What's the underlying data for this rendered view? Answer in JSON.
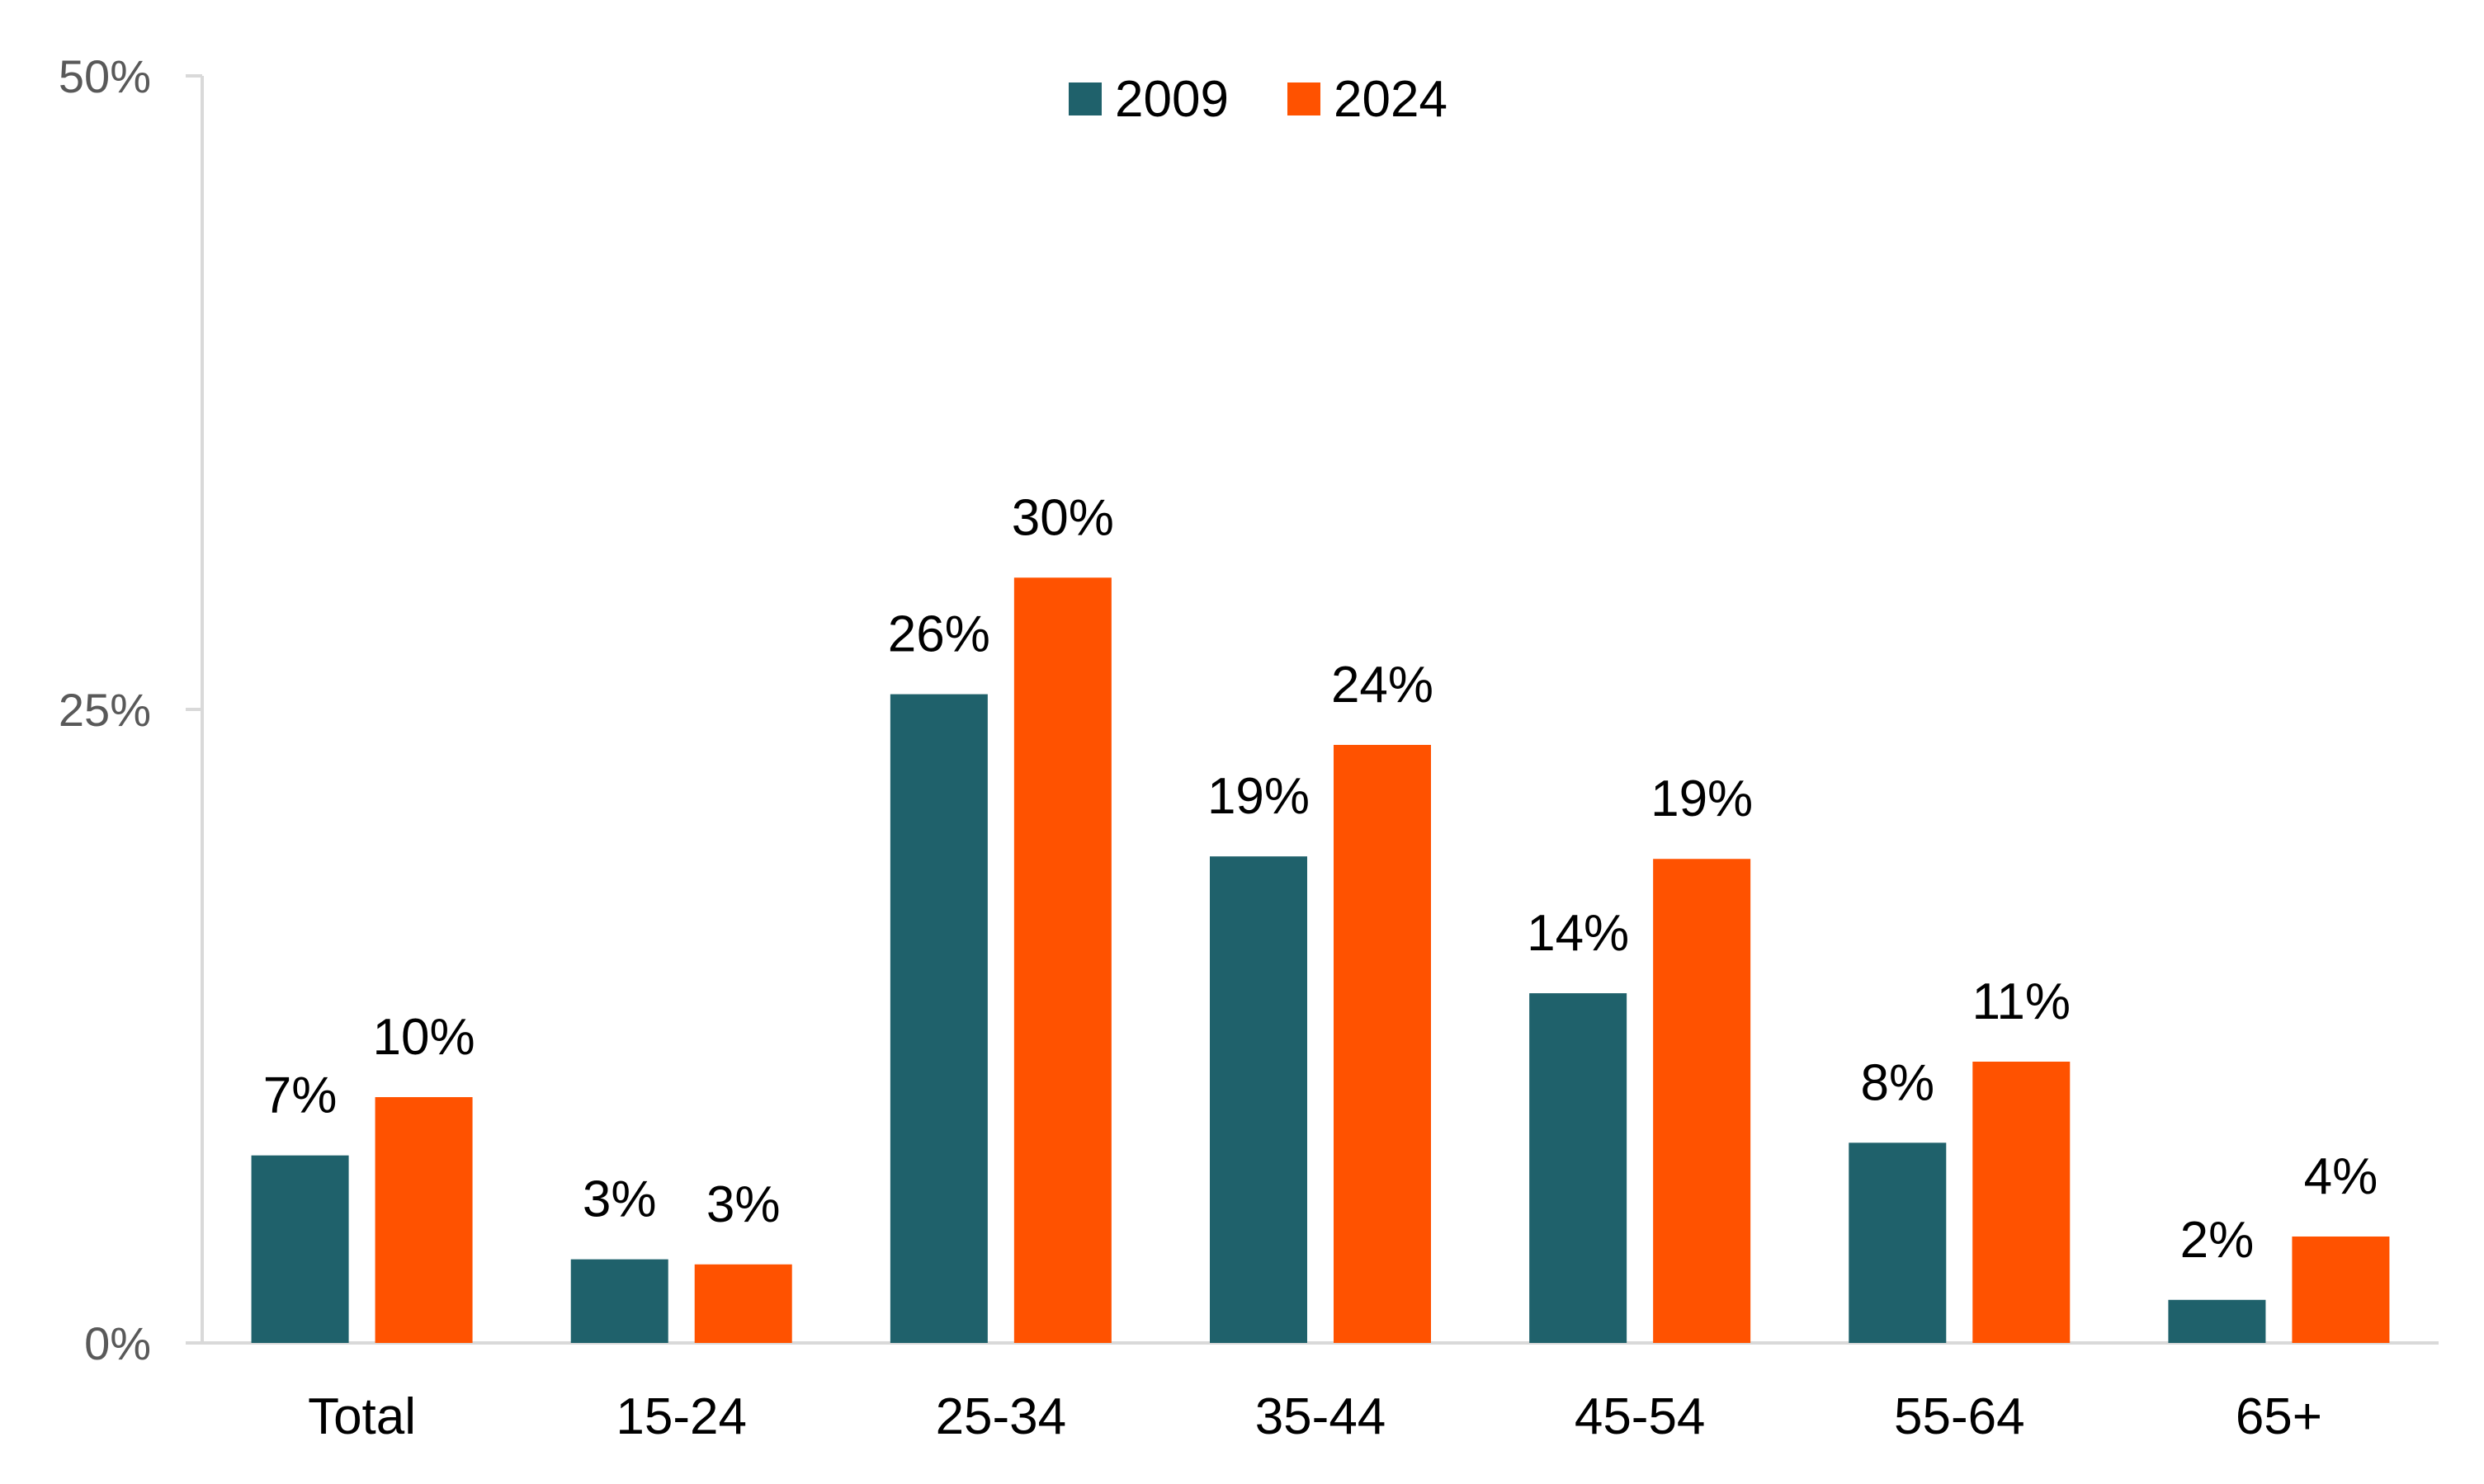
{
  "chart_data": {
    "type": "bar",
    "categories": [
      "Total",
      "15-24",
      "25-34",
      "35-44",
      "45-54",
      "55-64",
      "65+"
    ],
    "series": [
      {
        "name": "2009",
        "color": "#1f616b",
        "values": [
          7.4,
          3.3,
          25.6,
          19.2,
          13.8,
          7.9,
          1.7
        ],
        "labels": [
          "7%",
          "3%",
          "26%",
          "19%",
          "14%",
          "8%",
          "2%"
        ]
      },
      {
        "name": "2024",
        "color": "#ff5200",
        "values": [
          9.7,
          3.1,
          30.2,
          23.6,
          19.1,
          11.1,
          4.2
        ],
        "labels": [
          "10%",
          "3%",
          "30%",
          "24%",
          "19%",
          "11%",
          "4%"
        ]
      }
    ],
    "yticks": [
      {
        "value": 0,
        "label": "0%"
      },
      {
        "value": 25,
        "label": "25%"
      },
      {
        "value": 50,
        "label": "50%"
      }
    ],
    "ylim": [
      0,
      50
    ],
    "title": "",
    "xlabel": "",
    "ylabel": "",
    "grid": false,
    "legend_position": "top-center",
    "axis_color": "#d9d9d9"
  }
}
